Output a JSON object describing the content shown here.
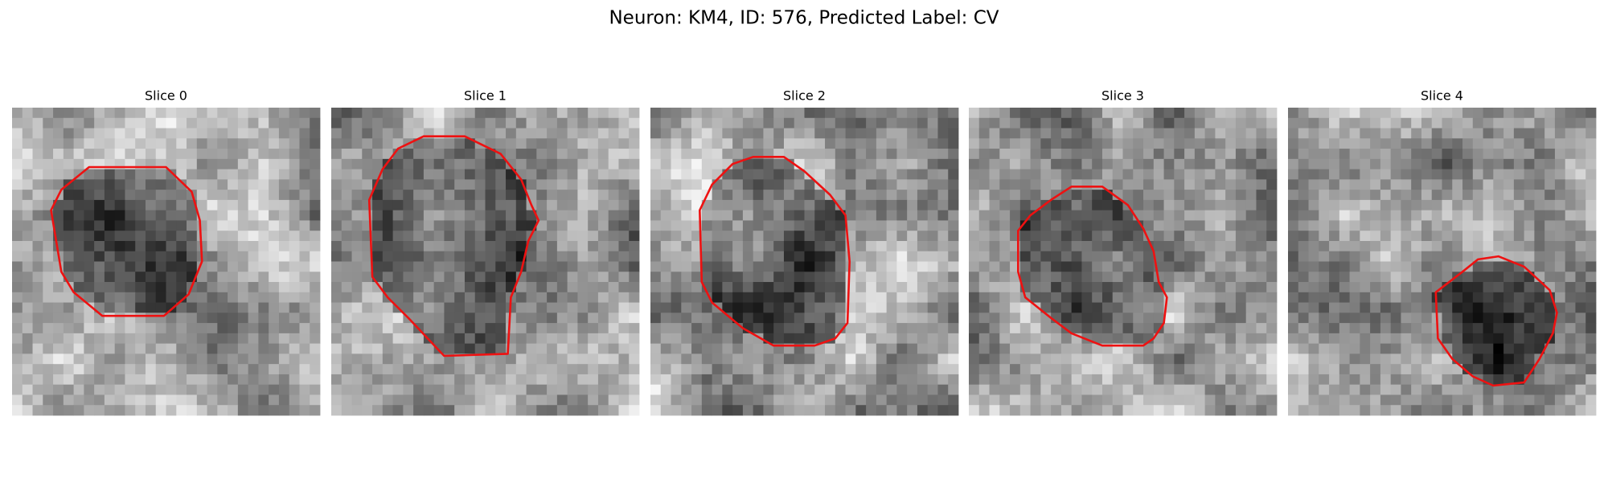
{
  "title": "Neuron: KM4, ID: 576, Predicted Label: CV",
  "panels": [
    {
      "title": "Slice 0"
    },
    {
      "title": "Slice 1"
    },
    {
      "title": "Slice 2"
    },
    {
      "title": "Slice 3"
    },
    {
      "title": "Slice 4"
    }
  ]
}
